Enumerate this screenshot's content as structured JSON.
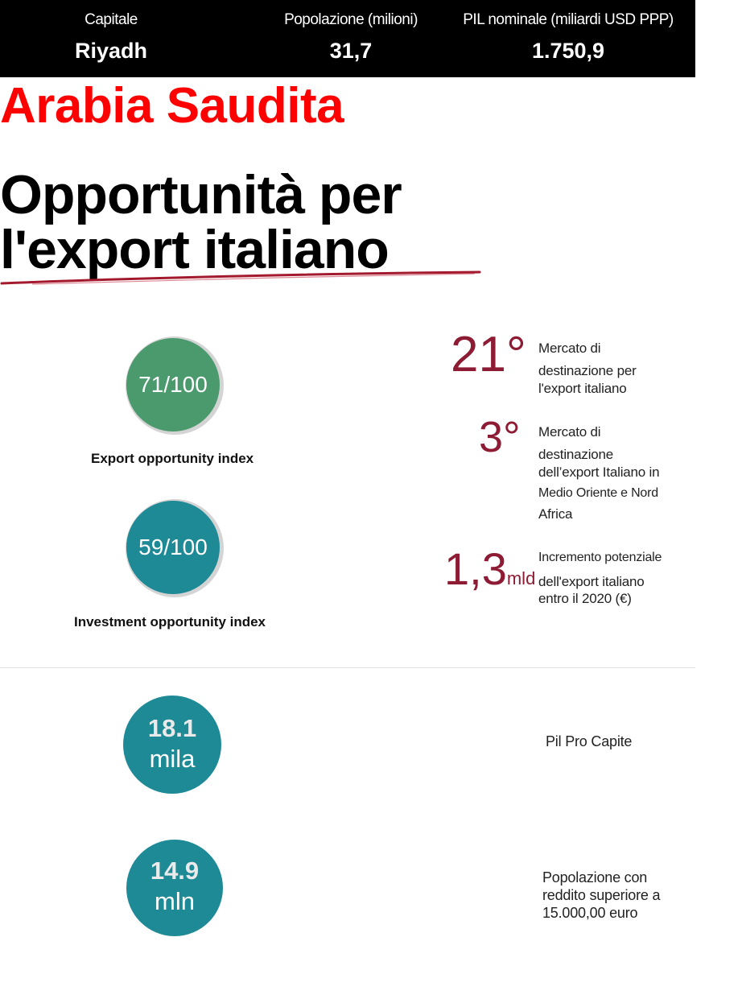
{
  "header": {
    "capitale_label": "Capitale",
    "capitale_value": "Riyadh",
    "popolazione_label": "Popolazione (milioni)",
    "popolazione_value": "31,7",
    "pil_label": "PIL nominale (miliardi USD PPP)",
    "pil_value": "1.750,9"
  },
  "country": "Arabia Saudita",
  "headline": {
    "line1": "Opportunità per",
    "line2": "l'export italiano"
  },
  "indexes": {
    "export": {
      "value_text": "71/100",
      "value": 71,
      "label": "Export opportunity index",
      "color": "#4a9a6e"
    },
    "investment": {
      "value_text": "59/100",
      "value": 59,
      "label": "Investment opportunity index",
      "color": "#1e8a96"
    }
  },
  "stats": {
    "rank_world": {
      "value": "21°",
      "lines": [
        "Mercato di",
        "destinazione per",
        "l'export italiano"
      ]
    },
    "rank_mena": {
      "value": "3°",
      "lines": [
        "Mercato di",
        "destinazione",
        "dell’export Italiano in",
        "Medio Oriente e Nord",
        "Africa"
      ]
    },
    "increment": {
      "value": "1,3",
      "unit": "mld",
      "lines": [
        "Incremento potenziale",
        "dell'export italiano",
        "entro il 2020 (€)"
      ]
    }
  },
  "kpis": {
    "pil_pro_capite": {
      "number": "18.1",
      "unit": "mila",
      "label": "Pil Pro Capite"
    },
    "popolazione_reddito": {
      "number": "14.9",
      "unit": "mln",
      "lines": [
        "Popolazione con",
        "reddito superiore a",
        "15.000,00 euro"
      ]
    }
  },
  "colors": {
    "accent_red": "#ff0000",
    "stat_red": "#8c1b33",
    "teal": "#1e8a96",
    "green": "#4a9a6e"
  }
}
